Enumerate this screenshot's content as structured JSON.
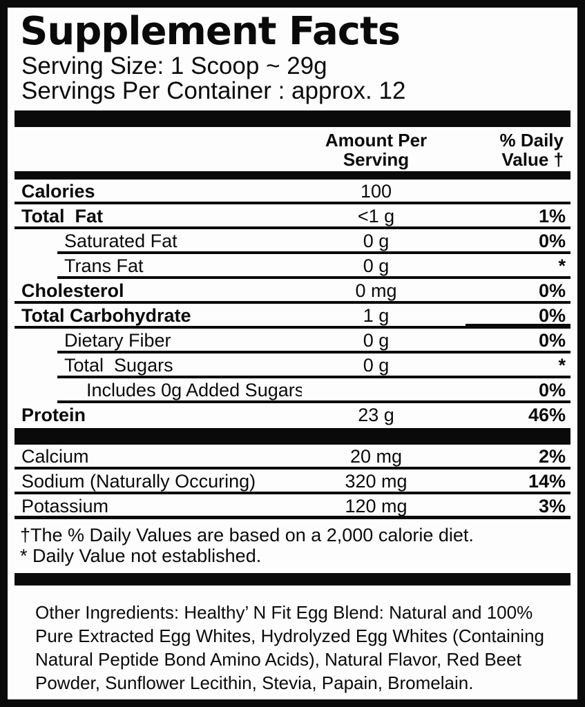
{
  "label": {
    "title": "Supplement Facts",
    "serving_size": "Serving Size: 1 Scoop ~ 29g",
    "servings_per_container": "Servings Per Container : approx. 12",
    "columns": {
      "amount": [
        "Amount Per",
        "Serving"
      ],
      "daily_value": [
        "% Daily",
        "Value †"
      ]
    },
    "main_rows": [
      {
        "name": "Calories",
        "amount": "100",
        "dv": "",
        "bold": true,
        "indent": 0,
        "sep": "full"
      },
      {
        "name": "Total  Fat",
        "amount": "<1 g",
        "dv": "1%",
        "bold": true,
        "indent": 0,
        "sep": "full"
      },
      {
        "name": "Saturated Fat",
        "amount": "0 g",
        "dv": "0%",
        "bold": false,
        "indent": 1,
        "sep": "indent"
      },
      {
        "name": "Trans Fat",
        "amount": "0 g",
        "dv": "*",
        "bold": false,
        "indent": 1,
        "sep": "indent"
      },
      {
        "name": "Cholesterol",
        "amount": "0 mg",
        "dv": "0%",
        "bold": true,
        "indent": 0,
        "sep": "full"
      },
      {
        "name": "Total Carbohydrate",
        "amount": "1 g",
        "dv": "0%",
        "bold": true,
        "indent": 0,
        "sep": "full",
        "dv_rule": true
      },
      {
        "name": "Dietary Fiber",
        "amount": "0 g",
        "dv": "0%",
        "bold": false,
        "indent": 1,
        "sep": "indent"
      },
      {
        "name": "Total  Sugars",
        "amount": "0 g",
        "dv": "*",
        "bold": false,
        "indent": 1,
        "sep": "indent"
      },
      {
        "name": "Includes 0g Added Sugars",
        "amount": "",
        "dv": "0%",
        "bold": false,
        "indent": 2,
        "sep": "indent"
      },
      {
        "name": "Protein",
        "amount": "23 g",
        "dv": "46%",
        "bold": true,
        "indent": 0,
        "sep": "none"
      }
    ],
    "mineral_rows": [
      {
        "name": "Calcium",
        "amount": "20 mg",
        "dv": "2%",
        "bold": false,
        "indent": 0,
        "sep": "full"
      },
      {
        "name": "Sodium (Naturally Occuring)",
        "amount": "320 mg",
        "dv": "14%",
        "bold": false,
        "indent": 0,
        "sep": "full"
      },
      {
        "name": "Potassium",
        "amount": "120 mg",
        "dv": "3%",
        "bold": false,
        "indent": 0,
        "sep": "thick"
      }
    ],
    "footnotes": [
      "†The % Daily Values are based on a 2,000 calorie diet.",
      "* Daily Value not established."
    ],
    "other_ingredients": "Other Ingredients: Healthy’ N Fit Egg Blend: Natural and 100% Pure Extracted Egg Whites, Hydrolyzed Egg Whites (Containing Natural Peptide Bond Amino Acids), Natural Flavor, Red Beet Powder, Sunflower Lecithin, Stevia, Papain, Bromelain.",
    "colors": {
      "ink": "#0a0a0a",
      "paper": "#fdfdfd"
    }
  }
}
